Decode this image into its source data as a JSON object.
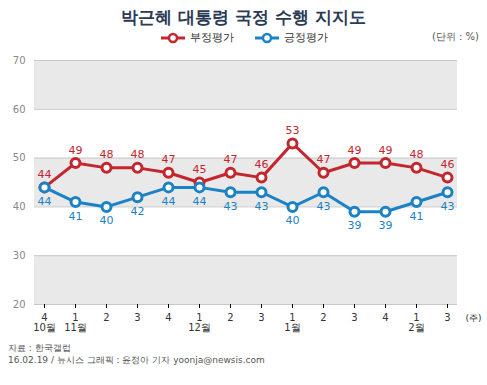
{
  "chart_data": {
    "type": "line",
    "title": "박근혜 대통령 국정 수행 지지도",
    "subtitle": "(단위 : %)",
    "x_label": "(주)",
    "categories": [
      "4\n10월",
      "1\n11월",
      "2",
      "3",
      "4",
      "1\n12월",
      "2",
      "3",
      "1\n1월",
      "2",
      "3",
      "4",
      "1\n2월",
      "3"
    ],
    "series": [
      {
        "name": "부정평가",
        "color": "#c4262e",
        "marker": "circle",
        "values": [
          44,
          49,
          48,
          48,
          47,
          45,
          47,
          46,
          53,
          47,
          49,
          49,
          48,
          46
        ]
      },
      {
        "name": "긍정평가",
        "color": "#1b82c5",
        "marker": "circle",
        "values": [
          44,
          41,
          40,
          42,
          44,
          44,
          43,
          43,
          40,
          43,
          39,
          39,
          41,
          43
        ]
      }
    ],
    "ylim": [
      20,
      70
    ],
    "yticks": [
      20,
      30,
      40,
      50,
      60,
      70
    ],
    "grid": true,
    "legend": "top",
    "data_labels": true,
    "source": "자료 : 한국갤럽",
    "credit": "16.02.19 / 뉴시스 그래픽 : 윤정아 기자 yoonja@newsis.com"
  }
}
